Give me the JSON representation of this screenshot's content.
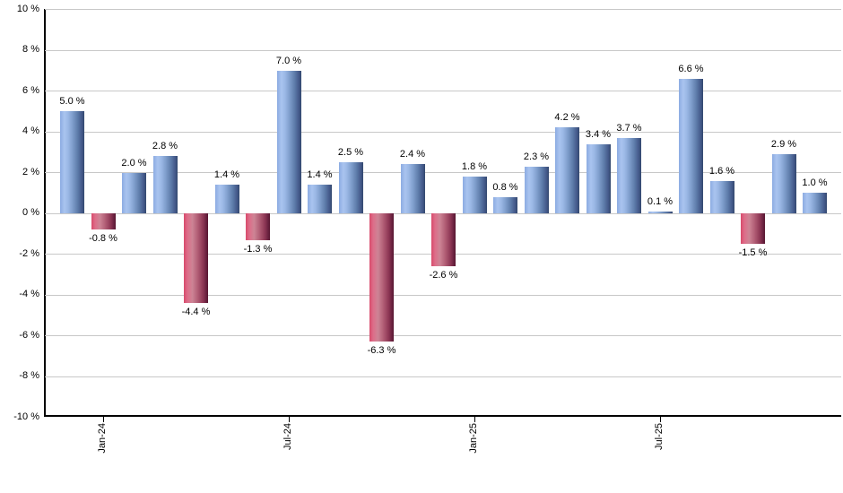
{
  "chart_data": {
    "type": "bar",
    "title": "",
    "xlabel": "",
    "ylabel": "",
    "ylim": [
      -10,
      10
    ],
    "grid": true,
    "legend": "none",
    "values": [
      5.0,
      -0.8,
      2.0,
      2.8,
      -4.4,
      1.4,
      -1.3,
      7.0,
      1.4,
      2.5,
      -6.3,
      2.4,
      -2.6,
      1.8,
      0.8,
      2.3,
      4.2,
      3.4,
      3.7,
      0.1,
      6.6,
      1.6,
      -1.5,
      2.9,
      1.0
    ],
    "bar_labels": [
      "5.0 %",
      "-0.8 %",
      "2.0 %",
      "2.8 %",
      "-4.4 %",
      "1.4 %",
      "-1.3 %",
      "7.0 %",
      "1.4 %",
      "2.5 %",
      "-6.3 %",
      "2.4 %",
      "-2.6 %",
      "1.8 %",
      "0.8 %",
      "2.3 %",
      "4.2 %",
      "3.4 %",
      "3.7 %",
      "0.1 %",
      "6.6 %",
      "1.6 %",
      "-1.5 %",
      "2.9 %",
      "1.0 %"
    ],
    "x_tick_labels": [
      "Jan-24",
      "Jul-24",
      "Jan-25",
      "Jul-25"
    ],
    "x_tick_bar_indices": [
      1,
      7,
      13,
      19
    ],
    "y_tick_values": [
      10,
      8,
      6,
      4,
      2,
      0,
      -2,
      -4,
      -6,
      -8,
      -10
    ],
    "y_tick_labels": [
      "10 %",
      "8 %",
      "6 %",
      "4 %",
      "2 %",
      "0 %",
      "-2 %",
      "-4 %",
      "-6 %",
      "-8 %",
      "-10 %"
    ],
    "colors": {
      "positive_bar": "#7fa1d6",
      "positive_bar_highlight": "#a9c4ef",
      "positive_bar_shadow": "#33486e",
      "negative_bar": "#c44a68",
      "negative_bar_highlight": "#cd8495",
      "negative_bar_shadow": "#581630",
      "gridline": "#c8c8c8",
      "axis": "#000000",
      "label_text": "#000000",
      "background": "#ffffff"
    }
  }
}
